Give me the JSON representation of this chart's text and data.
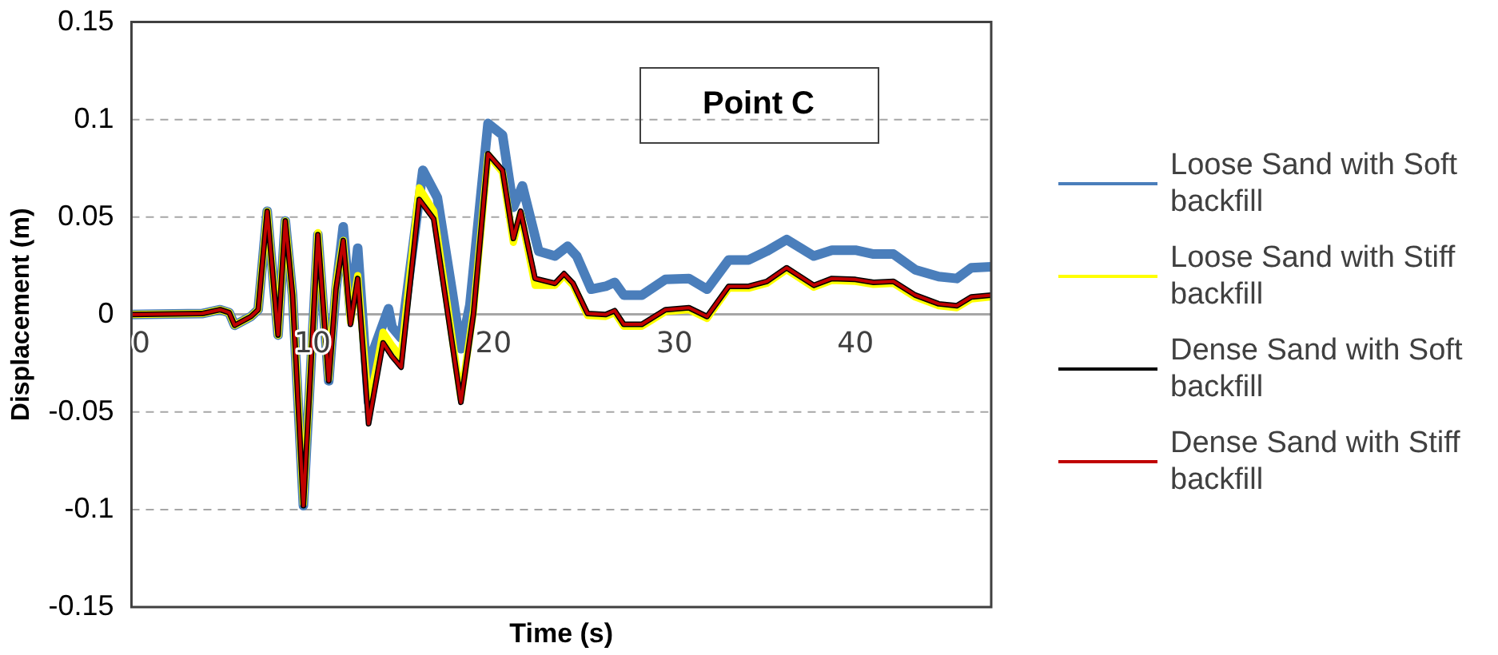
{
  "chart_data": {
    "type": "line",
    "xlabel": "Time (s)",
    "ylabel": "Displacement (m)",
    "annotations": [
      "Point C"
    ],
    "xlim": [
      0,
      47.5
    ],
    "xticks": [
      0,
      10,
      20,
      30,
      40
    ],
    "ylim": [
      -0.15,
      0.15
    ],
    "yticks": [
      -0.15,
      -0.1,
      -0.05,
      0,
      0.05,
      0.1,
      0.15
    ],
    "grid": "y",
    "legend": "right",
    "marker": "none",
    "line_style": "solid",
    "series": [
      {
        "name": "Loose Sand with Soft backfill",
        "color": "#4a7ebb",
        "x": [
          0,
          3.9,
          4.9,
          5.4,
          5.7,
          6.6,
          7.0,
          7.5,
          8.1,
          8.5,
          8.9,
          9.5,
          10.3,
          10.9,
          11.3,
          11.7,
          12.1,
          12.5,
          13.1,
          13.4,
          14.2,
          14.4,
          14.9,
          16.1,
          16.9,
          17.7,
          18.2,
          18.7,
          19.7,
          20.5,
          21.1,
          21.6,
          22.5,
          23.4,
          24.1,
          24.6,
          25.4,
          26.2,
          26.7,
          27.2,
          28.2,
          29.5,
          30.8,
          31.8,
          33.0,
          34.1,
          35.1,
          36.2,
          37.7,
          38.7,
          40.0,
          41.0,
          42.1,
          43.3,
          44.6,
          45.6,
          46.4,
          47.5
        ],
        "values": [
          0,
          0.0005,
          0.0025,
          0.001,
          -0.0055,
          -0.001,
          0.0025,
          0.053,
          -0.0105,
          0.048,
          0.01,
          -0.098,
          0.041,
          -0.034,
          0.013,
          0.045,
          0.0005,
          0.034,
          -0.045,
          -0.0175,
          0.003,
          -0.0065,
          -0.012,
          0.074,
          0.06,
          0.013,
          -0.0175,
          0.005,
          0.098,
          0.092,
          0.055,
          0.066,
          0.0325,
          0.03,
          0.035,
          0.03,
          0.013,
          0.0145,
          0.0165,
          0.01,
          0.01,
          0.018,
          0.0185,
          0.013,
          0.028,
          0.028,
          0.0325,
          0.0385,
          0.03,
          0.033,
          0.033,
          0.031,
          0.031,
          0.023,
          0.0195,
          0.0185,
          0.024,
          0.0245
        ]
      },
      {
        "name": "Loose Sand with Stiff backfill",
        "color": "#ffff00",
        "x": [
          0,
          3.9,
          4.9,
          5.4,
          5.7,
          6.6,
          7.0,
          7.5,
          8.1,
          8.5,
          8.9,
          9.5,
          10.3,
          10.9,
          11.3,
          11.7,
          12.1,
          12.5,
          13.1,
          13.6,
          13.9,
          14.4,
          14.9,
          15.9,
          16.7,
          17.5,
          18.2,
          18.9,
          19.7,
          20.5,
          21.1,
          21.5,
          22.3,
          23.4,
          23.9,
          24.4,
          25.2,
          26.2,
          26.7,
          27.2,
          28.2,
          29.5,
          30.8,
          31.8,
          33.0,
          34.1,
          35.1,
          36.2,
          37.7,
          38.7,
          40.0,
          41.0,
          42.1,
          43.3,
          44.6,
          45.6,
          46.4,
          47.5
        ],
        "values": [
          0,
          0.0005,
          0.0025,
          0.001,
          -0.0055,
          -0.001,
          0.0025,
          0.053,
          -0.0105,
          0.048,
          0.01,
          -0.097,
          0.042,
          -0.033,
          0.015,
          0.038,
          -0.004,
          0.02,
          -0.047,
          -0.024,
          -0.009,
          -0.016,
          -0.022,
          0.065,
          0.053,
          0.002,
          -0.043,
          0.002,
          0.082,
          0.073,
          0.037,
          0.052,
          0.015,
          0.015,
          0.02,
          0.015,
          -0.0005,
          -0.001,
          0.001,
          -0.006,
          -0.006,
          0.0015,
          0.0025,
          -0.002,
          0.0135,
          0.0135,
          0.016,
          0.023,
          0.014,
          0.0175,
          0.017,
          0.0155,
          0.016,
          0.009,
          0.0045,
          0.0035,
          0.008,
          0.009
        ]
      },
      {
        "name": "Dense Sand with Soft backfill",
        "color": "#000000",
        "x": [
          0,
          3.9,
          4.9,
          5.4,
          5.7,
          6.6,
          7.0,
          7.5,
          8.1,
          8.5,
          8.9,
          9.5,
          10.3,
          10.9,
          11.3,
          11.7,
          12.1,
          12.5,
          13.1,
          13.6,
          13.9,
          14.4,
          14.9,
          15.9,
          16.7,
          17.5,
          18.2,
          18.9,
          19.7,
          20.5,
          21.1,
          21.5,
          22.3,
          23.4,
          23.9,
          24.4,
          25.2,
          26.2,
          26.7,
          27.2,
          28.2,
          29.5,
          30.8,
          31.8,
          33.0,
          34.1,
          35.1,
          36.2,
          37.7,
          38.7,
          40.0,
          41.0,
          42.1,
          43.3,
          44.6,
          45.6,
          46.4,
          47.5
        ],
        "values": [
          0,
          0.0005,
          0.0025,
          0.001,
          -0.0055,
          -0.001,
          0.0025,
          0.053,
          -0.0105,
          0.048,
          0.01,
          -0.098,
          0.041,
          -0.034,
          0.013,
          0.038,
          -0.005,
          0.0185,
          -0.056,
          -0.03,
          -0.0145,
          -0.0215,
          -0.027,
          0.059,
          0.049,
          -0.001,
          -0.045,
          0.0005,
          0.0825,
          0.074,
          0.039,
          0.053,
          0.0185,
          0.016,
          0.021,
          0.016,
          0.0005,
          0,
          0.002,
          -0.005,
          -0.005,
          0.0025,
          0.0035,
          -0.001,
          0.0145,
          0.0145,
          0.017,
          0.024,
          0.015,
          0.0185,
          0.018,
          0.0165,
          0.017,
          0.01,
          0.0055,
          0.0045,
          0.009,
          0.01
        ]
      },
      {
        "name": "Dense Sand with Stiff backfill",
        "color": "#c00000",
        "x": [
          0,
          3.9,
          4.9,
          5.4,
          5.7,
          6.6,
          7.0,
          7.5,
          8.1,
          8.5,
          8.9,
          9.5,
          10.3,
          10.9,
          11.3,
          11.7,
          12.1,
          12.5,
          13.1,
          13.6,
          13.9,
          14.4,
          14.9,
          15.9,
          16.7,
          17.5,
          18.2,
          18.9,
          19.7,
          20.5,
          21.1,
          21.5,
          22.3,
          23.4,
          23.9,
          24.4,
          25.2,
          26.2,
          26.7,
          27.2,
          28.2,
          29.5,
          30.8,
          31.8,
          33.0,
          34.1,
          35.1,
          36.2,
          37.7,
          38.7,
          40.0,
          41.0,
          42.1,
          43.3,
          44.6,
          45.6,
          46.4,
          47.5
        ],
        "values": [
          0,
          0.0005,
          0.0025,
          0.001,
          -0.0055,
          -0.001,
          0.0025,
          0.053,
          -0.0105,
          0.048,
          0.01,
          -0.098,
          0.041,
          -0.034,
          0.013,
          0.038,
          -0.005,
          0.0185,
          -0.056,
          -0.03,
          -0.0145,
          -0.0215,
          -0.027,
          0.059,
          0.049,
          -0.001,
          -0.045,
          0.0005,
          0.0825,
          0.074,
          0.039,
          0.053,
          0.0185,
          0.016,
          0.021,
          0.016,
          0.0005,
          0,
          0.002,
          -0.005,
          -0.005,
          0.0025,
          0.0035,
          -0.001,
          0.0145,
          0.0145,
          0.017,
          0.024,
          0.015,
          0.0185,
          0.018,
          0.0165,
          0.017,
          0.01,
          0.0055,
          0.0045,
          0.009,
          0.01
        ]
      }
    ]
  }
}
